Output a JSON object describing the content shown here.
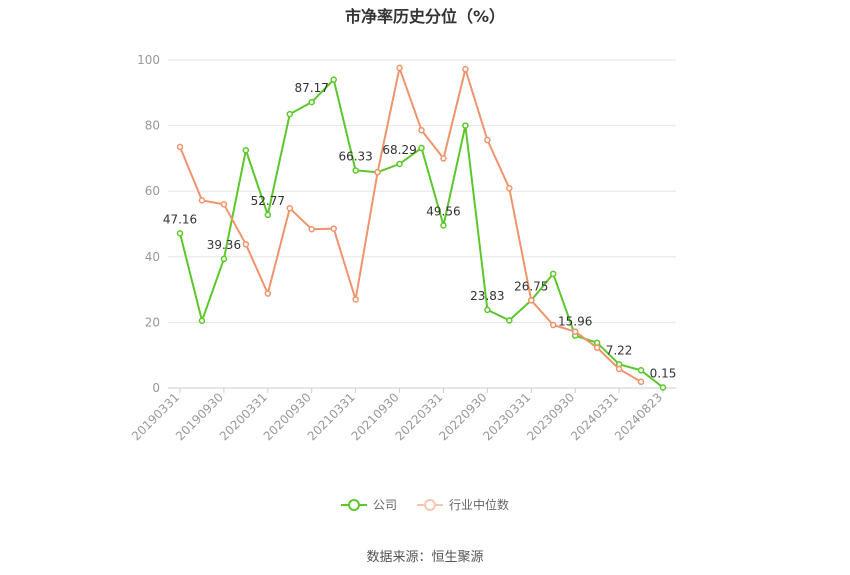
{
  "chart_data": {
    "type": "line",
    "title": "市净率历史分位（%）",
    "x": [
      "20190331",
      "20190630",
      "20190930",
      "20191231",
      "20200331",
      "20200630",
      "20200930",
      "20201231",
      "20210331",
      "20210630",
      "20210930",
      "20211231",
      "20220331",
      "20220630",
      "20220930",
      "20221231",
      "20230331",
      "20230630",
      "20230930",
      "20231231",
      "20240331",
      "20240630",
      "20240823"
    ],
    "x_tick_labels": [
      "20190331",
      "20190930",
      "20200331",
      "20200930",
      "20210331",
      "20210930",
      "20220331",
      "20220930",
      "20230331",
      "20230930",
      "20240331",
      "20240823"
    ],
    "ylim": [
      0,
      100
    ],
    "yticks": [
      0,
      20,
      40,
      60,
      80,
      100
    ],
    "grid": true,
    "legend_position": "bottom",
    "series": [
      {
        "name": "公司",
        "color": "#5cc72b",
        "values": [
          47.16,
          20.5,
          39.36,
          72.5,
          52.77,
          83.5,
          87.17,
          94.0,
          66.33,
          65.8,
          68.29,
          73.2,
          49.56,
          80.0,
          23.83,
          20.6,
          26.75,
          34.8,
          15.96,
          13.8,
          7.22,
          5.4,
          0.15
        ],
        "labels": {
          "0": "47.16",
          "2": "39.36",
          "4": "52.77",
          "6": "87.17",
          "8": "66.33",
          "10": "68.29",
          "12": "49.56",
          "14": "23.83",
          "16": "26.75",
          "18": "15.96",
          "20": "7.22",
          "22": "0.15"
        }
      },
      {
        "name": "行业中位数",
        "color": "#f0946c",
        "values": [
          73.5,
          57.2,
          56.0,
          43.8,
          28.8,
          54.8,
          48.4,
          48.6,
          27.0,
          65.8,
          97.6,
          78.6,
          70.0,
          97.2,
          75.6,
          60.9,
          26.7,
          19.2,
          17.2,
          12.3,
          5.8,
          1.9,
          null
        ]
      }
    ]
  },
  "source_text": "数据来源：恒生聚源"
}
